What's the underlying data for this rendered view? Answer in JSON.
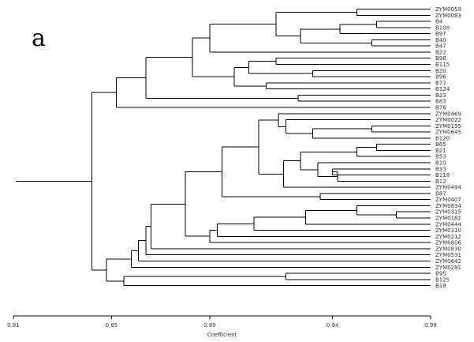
{
  "panel_label": "a",
  "axis": {
    "title": "Coefficient",
    "ticks": [
      "0.81",
      "0.85",
      "0.89",
      "0.94",
      "0.98"
    ],
    "tick_values": [
      0.81,
      0.85,
      0.89,
      0.94,
      0.98
    ],
    "range": [
      0.81,
      0.98
    ]
  },
  "chart_data": {
    "type": "dendrogram",
    "xlabel": "Coefficient",
    "xlim": [
      0.81,
      0.98
    ],
    "leaves": [
      "ZYM0059",
      "ZYM0083",
      "B4",
      "B108",
      "B97",
      "B40",
      "B47",
      "B22",
      "B98",
      "B115",
      "B20",
      "B96",
      "B77",
      "B124",
      "B23",
      "B83",
      "B76",
      "ZYM0469",
      "ZYM0022",
      "ZYM0195",
      "ZYM0645",
      "B120",
      "B65",
      "B21",
      "B53",
      "B10",
      "B33",
      "B118",
      "B12",
      "ZYM0494",
      "B87",
      "ZYM0407",
      "ZYM0834",
      "ZYM0315",
      "ZYM0182",
      "ZYM0444",
      "ZYM0310",
      "ZYM0212",
      "ZYM0606",
      "ZYM0830",
      "ZYM0531",
      "ZYM0642",
      "ZYM0281",
      "B95",
      "B125",
      "B18"
    ],
    "merges": [
      {
        "id": "m1",
        "a": "L0",
        "b": "L1",
        "h": 0.95
      },
      {
        "id": "m2",
        "a": "L2",
        "b": "L3",
        "h": 0.958
      },
      {
        "id": "m3",
        "a": "m2",
        "b": "L4",
        "h": 0.943
      },
      {
        "id": "m4",
        "a": "L5",
        "b": "L6",
        "h": 0.956
      },
      {
        "id": "m5",
        "a": "m3",
        "b": "m4",
        "h": 0.927
      },
      {
        "id": "m6",
        "a": "m1",
        "b": "m5",
        "h": 0.917
      },
      {
        "id": "m7",
        "a": "m6",
        "b": "L7",
        "h": 0.89
      },
      {
        "id": "m8",
        "a": "L8",
        "b": "L9",
        "h": 0.917
      },
      {
        "id": "m9",
        "a": "L10",
        "b": "L11",
        "h": 0.932
      },
      {
        "id": "m10",
        "a": "m8",
        "b": "m9",
        "h": 0.906
      },
      {
        "id": "m11",
        "a": "L12",
        "b": "L13",
        "h": 0.913
      },
      {
        "id": "m12",
        "a": "m10",
        "b": "m11",
        "h": 0.9
      },
      {
        "id": "m13",
        "a": "m7",
        "b": "m12",
        "h": 0.883
      },
      {
        "id": "m14",
        "a": "L14",
        "b": "L15",
        "h": 0.926
      },
      {
        "id": "m15",
        "a": "m13",
        "b": "m14",
        "h": 0.864
      },
      {
        "id": "m16",
        "a": "m15",
        "b": "L16",
        "h": 0.852
      },
      {
        "id": "m17",
        "a": "L19",
        "b": "L20",
        "h": 0.956
      },
      {
        "id": "m18",
        "a": "m17",
        "b": "L21",
        "h": 0.932
      },
      {
        "id": "m19",
        "a": "L18",
        "b": "m18",
        "h": 0.921
      },
      {
        "id": "m20",
        "a": "L17",
        "b": "m19",
        "h": 0.918
      },
      {
        "id": "m21",
        "a": "L22",
        "b": "L23",
        "h": 0.958
      },
      {
        "id": "m22",
        "a": "m21",
        "b": "L24",
        "h": 0.95
      },
      {
        "id": "m23",
        "a": "L26",
        "b": "L27",
        "h": 0.94
      },
      {
        "id": "m24",
        "a": "m23",
        "b": "L28",
        "h": 0.942
      },
      {
        "id": "m25",
        "a": "L25",
        "b": "m24",
        "h": 0.934
      },
      {
        "id": "m26",
        "a": "m22",
        "b": "m25",
        "h": 0.927
      },
      {
        "id": "m27",
        "a": "m26",
        "b": "L29",
        "h": 0.92
      },
      {
        "id": "m28",
        "a": "m20",
        "b": "m27",
        "h": 0.91
      },
      {
        "id": "m29",
        "a": "L30",
        "b": "L31",
        "h": 0.935
      },
      {
        "id": "m30",
        "a": "m28",
        "b": "m29",
        "h": 0.895
      },
      {
        "id": "m31",
        "a": "L33",
        "b": "L34",
        "h": 0.966
      },
      {
        "id": "m32",
        "a": "L32",
        "b": "m31",
        "h": 0.95
      },
      {
        "id": "m33",
        "a": "m32",
        "b": "L35",
        "h": 0.929
      },
      {
        "id": "m34",
        "a": "m33",
        "b": "L36",
        "h": 0.908
      },
      {
        "id": "m35",
        "a": "m34",
        "b": "L37",
        "h": 0.893
      },
      {
        "id": "m36",
        "a": "m35",
        "b": "L38",
        "h": 0.89
      },
      {
        "id": "m37",
        "a": "m30",
        "b": "m36",
        "h": 0.88
      },
      {
        "id": "m38",
        "a": "m37",
        "b": "L39",
        "h": 0.866
      },
      {
        "id": "m39",
        "a": "m38",
        "b": "L40",
        "h": 0.864
      },
      {
        "id": "m40",
        "a": "m39",
        "b": "L41",
        "h": 0.861
      },
      {
        "id": "m41",
        "a": "m40",
        "b": "L42",
        "h": 0.858
      },
      {
        "id": "m42",
        "a": "L43",
        "b": "L44",
        "h": 0.921
      },
      {
        "id": "m43",
        "a": "m42",
        "b": "L45",
        "h": 0.855
      },
      {
        "id": "m44",
        "a": "m41",
        "b": "m43",
        "h": 0.848
      },
      {
        "id": "m45",
        "a": "m16",
        "b": "m44",
        "h": 0.842
      },
      {
        "id": "m46",
        "a": "m45",
        "b": "__root__",
        "h": 0.811
      }
    ]
  }
}
